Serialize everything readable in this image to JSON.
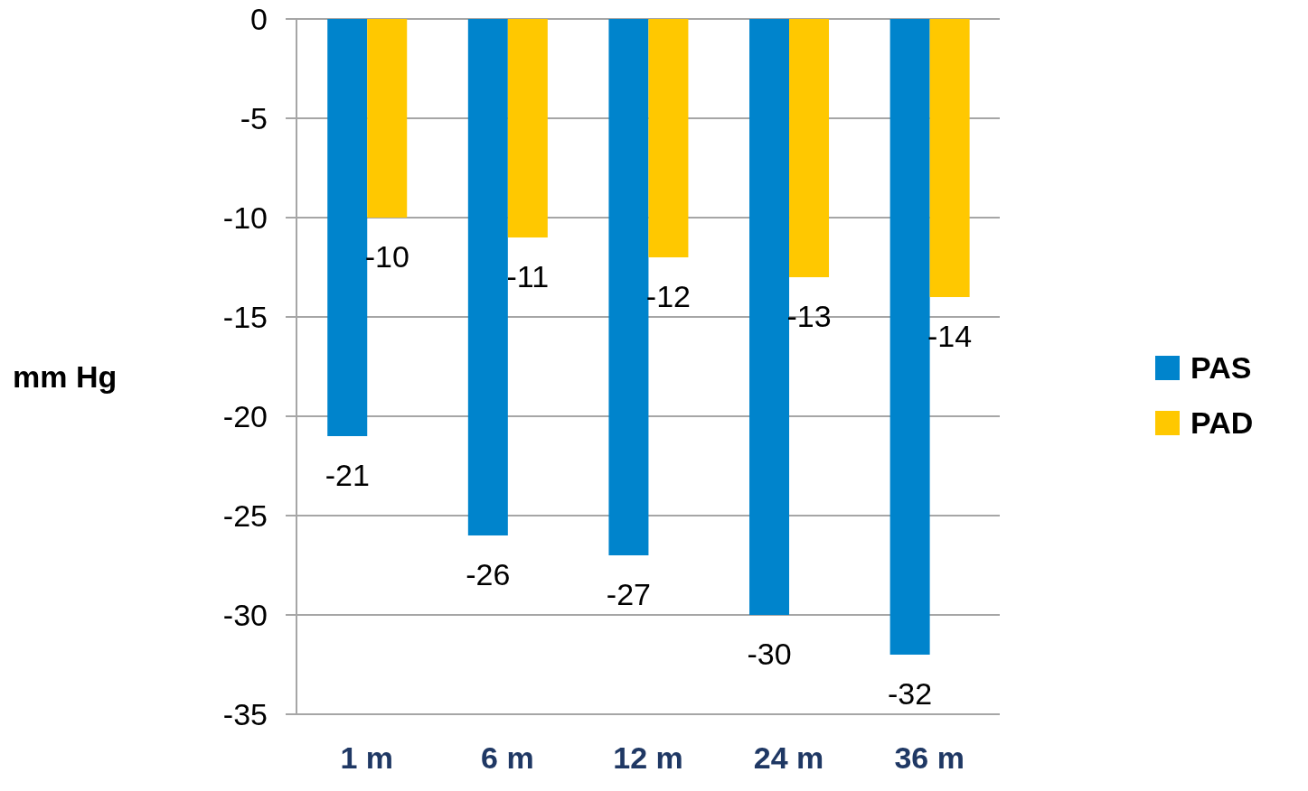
{
  "chart_data": {
    "type": "bar",
    "ylabel": "mm Hg",
    "categories": [
      "1 m",
      "6 m",
      "12 m",
      "24 m",
      "36 m"
    ],
    "series": [
      {
        "name": "PAS",
        "color": "#0084cc",
        "values": [
          -21,
          -26,
          -27,
          -30,
          -32
        ]
      },
      {
        "name": "PAD",
        "color": "#ffc800",
        "values": [
          -10,
          -11,
          -12,
          -13,
          -14
        ]
      }
    ],
    "ylim": [
      -35,
      0
    ],
    "yticks": [
      0,
      -5,
      -10,
      -15,
      -20,
      -25,
      -30,
      -35
    ],
    "grid": "y",
    "legend": "right",
    "data_labels": true
  }
}
